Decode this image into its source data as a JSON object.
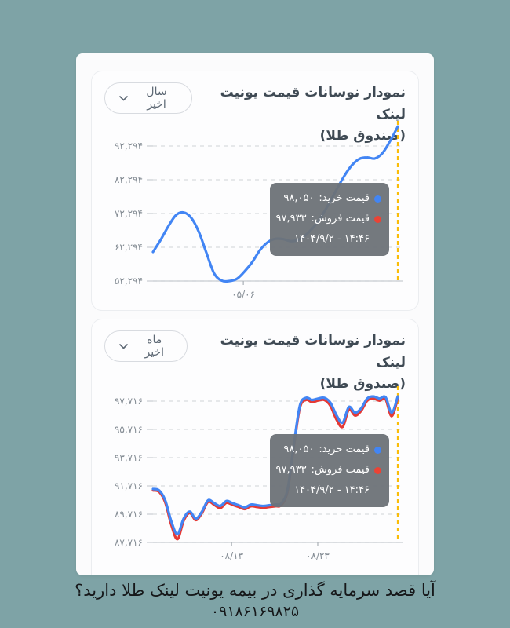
{
  "page": {
    "background_color": "#7ea3a6",
    "panel_color": "#fbfbfc"
  },
  "colors": {
    "buy_line": "#4285f4",
    "sell_line": "#e53935",
    "marker_line": "#fbbd08",
    "tooltip_bg": "#6d7277",
    "title_text": "#3f4a54",
    "axis_text": "#848c94"
  },
  "footer": {
    "question": "آیا قصد سرمایه گذاری در بیمه یونیت لینک طلا دارید؟",
    "phone": "۰۹۱۸۶۱۶۹۸۲۵"
  },
  "chart_data": [
    {
      "type": "line",
      "title": "نمودار نوسانات قیمت یونیت لینک",
      "subtitle": "(صندوق طلا)",
      "range_selector_label": "سال اخیر",
      "ylim": [
        52294,
        98800
      ],
      "grid": true,
      "yticks": [
        {
          "value": 92294,
          "label": "۹۲,۲۹۴"
        },
        {
          "value": 82294,
          "label": "۸۲,۲۹۴"
        },
        {
          "value": 72294,
          "label": "۷۲,۲۹۴"
        },
        {
          "value": 62294,
          "label": "۶۲,۲۹۴"
        },
        {
          "value": 52294,
          "label": "۵۲,۲۹۴"
        }
      ],
      "xticks": [
        {
          "pos": 0.369,
          "label": "۰۵/۰۶"
        }
      ],
      "marker": {
        "color": "#fbbd08",
        "pos": 1.0
      },
      "series": [
        {
          "id": "buy-price-line",
          "name": "قیمت خرید",
          "color": "#4285f4",
          "values": [
            60900,
            64500,
            68500,
            71800,
            72600,
            71000,
            66800,
            60500,
            54500,
            52400,
            52294,
            53000,
            55200,
            58000,
            61500,
            63800,
            64800,
            64700,
            64100,
            64500,
            66000,
            68300,
            71400,
            75200,
            79400,
            83400,
            86600,
            88500,
            88900,
            88600,
            90200,
            93800,
            98050
          ]
        }
      ],
      "tooltip": {
        "rows": [
          {
            "id": "buy",
            "dot_color": "#4285f4",
            "label": "قیمت خرید:",
            "value": "۹۸,۰۵۰"
          },
          {
            "id": "sell",
            "dot_color": "#ea4335",
            "label": "قیمت فروش:",
            "value": "۹۷,۹۳۳"
          }
        ],
        "datetime": "۱۴۰۴/۹/۲ - ۱۴:۴۶"
      }
    },
    {
      "type": "line",
      "title": "نمودار نوسانات قیمت یونیت لینک",
      "subtitle": "(صندوق طلا)",
      "range_selector_label": "ماه اخیر",
      "ylim": [
        87716,
        98550
      ],
      "grid": true,
      "yticks": [
        {
          "value": 97716,
          "label": "۹۷,۷۱۶"
        },
        {
          "value": 95716,
          "label": "۹۵,۷۱۶"
        },
        {
          "value": 93716,
          "label": "۹۳,۷۱۶"
        },
        {
          "value": 91716,
          "label": "۹۱,۷۱۶"
        },
        {
          "value": 89716,
          "label": "۸۹,۷۱۶"
        },
        {
          "value": 87716,
          "label": "۸۷,۷۱۶"
        }
      ],
      "xticks": [
        {
          "pos": 0.321,
          "label": "۰۸/۱۳"
        },
        {
          "pos": 0.673,
          "label": "۰۸/۲۳"
        }
      ],
      "marker": {
        "color": "#fbbd08",
        "pos": 1.0
      },
      "series": [
        {
          "id": "buy-price-line",
          "name": "قیمت خرید",
          "color": "#4285f4",
          "values": [
            91500,
            91400,
            90700,
            89200,
            88300,
            89400,
            89900,
            89400,
            89900,
            90700,
            90500,
            90300,
            90650,
            90500,
            90350,
            90200,
            90400,
            90350,
            90300,
            90350,
            90400,
            90500,
            91500,
            94600,
            97400,
            97950,
            97800,
            97900,
            97950,
            97600,
            96700,
            96200,
            97300,
            96900,
            97200,
            97900,
            98050,
            97900,
            98000,
            96900,
            98050
          ]
        },
        {
          "id": "sell-price-line",
          "name": "قیمت فروش",
          "color": "#e53935",
          "values": [
            91400,
            91300,
            90550,
            88950,
            87950,
            89250,
            89800,
            89300,
            89800,
            90600,
            90380,
            90150,
            90520,
            90380,
            90230,
            90080,
            90280,
            90230,
            90180,
            90230,
            90280,
            90380,
            91380,
            94450,
            97250,
            97800,
            97650,
            97760,
            97800,
            97380,
            96400,
            95900,
            97120,
            96700,
            97020,
            97750,
            97900,
            97750,
            97850,
            96650,
            97933
          ]
        }
      ],
      "tooltip": {
        "rows": [
          {
            "id": "buy",
            "dot_color": "#4285f4",
            "label": "قیمت خرید:",
            "value": "۹۸,۰۵۰"
          },
          {
            "id": "sell",
            "dot_color": "#ea4335",
            "label": "قیمت فروش:",
            "value": "۹۷,۹۳۳"
          }
        ],
        "datetime": "۱۴۰۴/۹/۲ - ۱۴:۴۶"
      }
    }
  ]
}
